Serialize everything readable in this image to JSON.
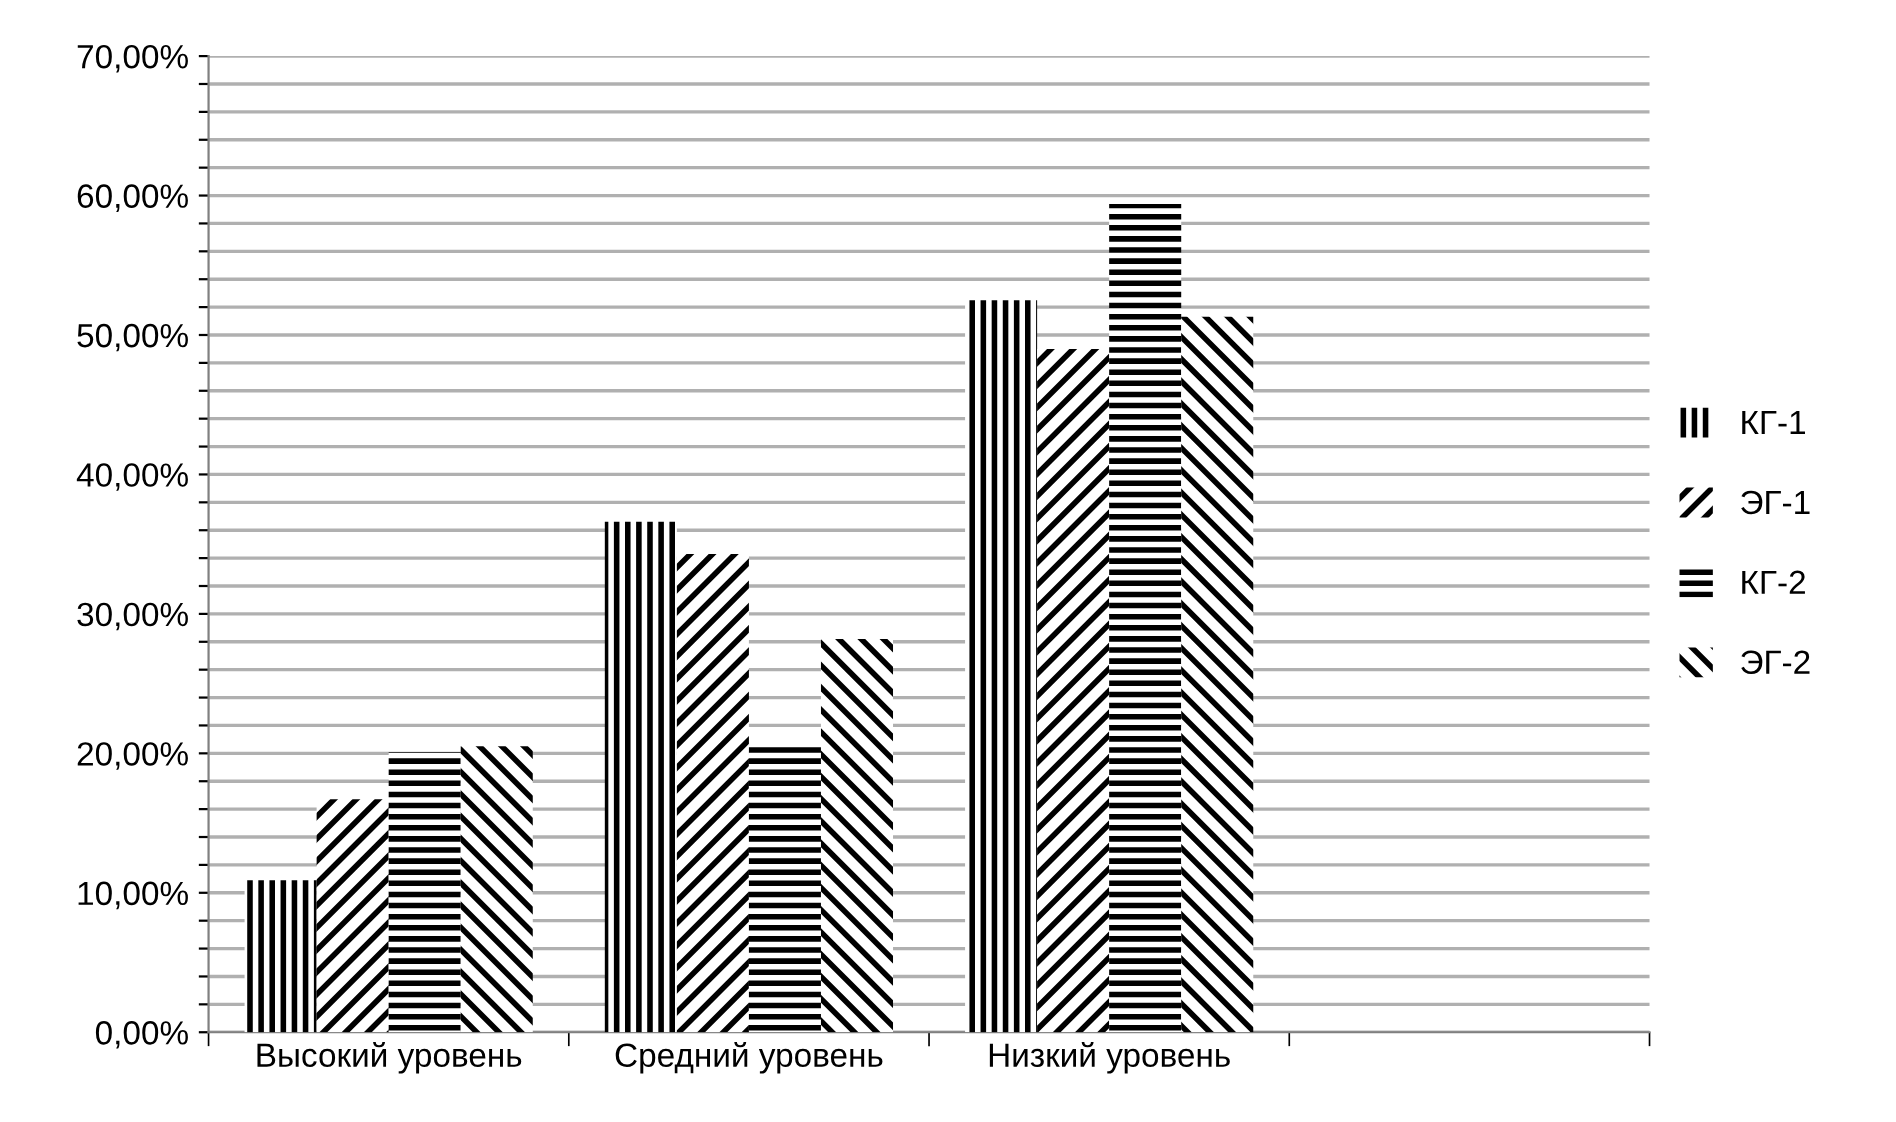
{
  "chart_data": {
    "type": "bar",
    "categories": [
      "Высокий уровень",
      "Средний уровень",
      "Низкий уровень",
      null
    ],
    "series": [
      {
        "name": "КГ-1",
        "color": "#000000",
        "values": [
          10.9,
          36.6,
          52.5,
          null
        ]
      },
      {
        "name": "ЭГ-1",
        "color": "#000000",
        "values": [
          16.7,
          34.3,
          49.0,
          null
        ]
      },
      {
        "name": "КГ-2",
        "color": "#000000",
        "values": [
          20.1,
          20.5,
          59.4,
          null
        ]
      },
      {
        "name": "ЭГ-2",
        "color": "#000000",
        "values": [
          20.5,
          28.2,
          51.3,
          null
        ]
      }
    ],
    "ylim": [
      0,
      70
    ],
    "yticks": [
      {
        "value": 0,
        "label": "0,00%"
      },
      {
        "value": 2,
        "label": null
      },
      {
        "value": 4,
        "label": null
      },
      {
        "value": 6,
        "label": null
      },
      {
        "value": 8,
        "label": null
      },
      {
        "value": 10,
        "label": "10,00%"
      },
      {
        "value": 12,
        "label": null
      },
      {
        "value": 14,
        "label": null
      },
      {
        "value": 16,
        "label": null
      },
      {
        "value": 18,
        "label": null
      },
      {
        "value": 20,
        "label": "20,00%"
      },
      {
        "value": 22,
        "label": null
      },
      {
        "value": 24,
        "label": null
      },
      {
        "value": 26,
        "label": null
      },
      {
        "value": 28,
        "label": null
      },
      {
        "value": 30,
        "label": "30,00%"
      },
      {
        "value": 32,
        "label": null
      },
      {
        "value": 34,
        "label": null
      },
      {
        "value": 36,
        "label": null
      },
      {
        "value": 38,
        "label": null
      },
      {
        "value": 40,
        "label": "40,00%"
      },
      {
        "value": 42,
        "label": null
      },
      {
        "value": 44,
        "label": null
      },
      {
        "value": 46,
        "label": null
      },
      {
        "value": 48,
        "label": null
      },
      {
        "value": 50,
        "label": "50,00%"
      },
      {
        "value": 52,
        "label": null
      },
      {
        "value": 54,
        "label": null
      },
      {
        "value": 56,
        "label": null
      },
      {
        "value": 58,
        "label": null
      },
      {
        "value": 60,
        "label": "60,00%"
      },
      {
        "value": 62,
        "label": null
      },
      {
        "value": 64,
        "label": null
      },
      {
        "value": 66,
        "label": null
      },
      {
        "value": 68,
        "label": null
      },
      {
        "value": 70,
        "label": "70,00%"
      }
    ],
    "grid": "y",
    "legend": "right"
  }
}
